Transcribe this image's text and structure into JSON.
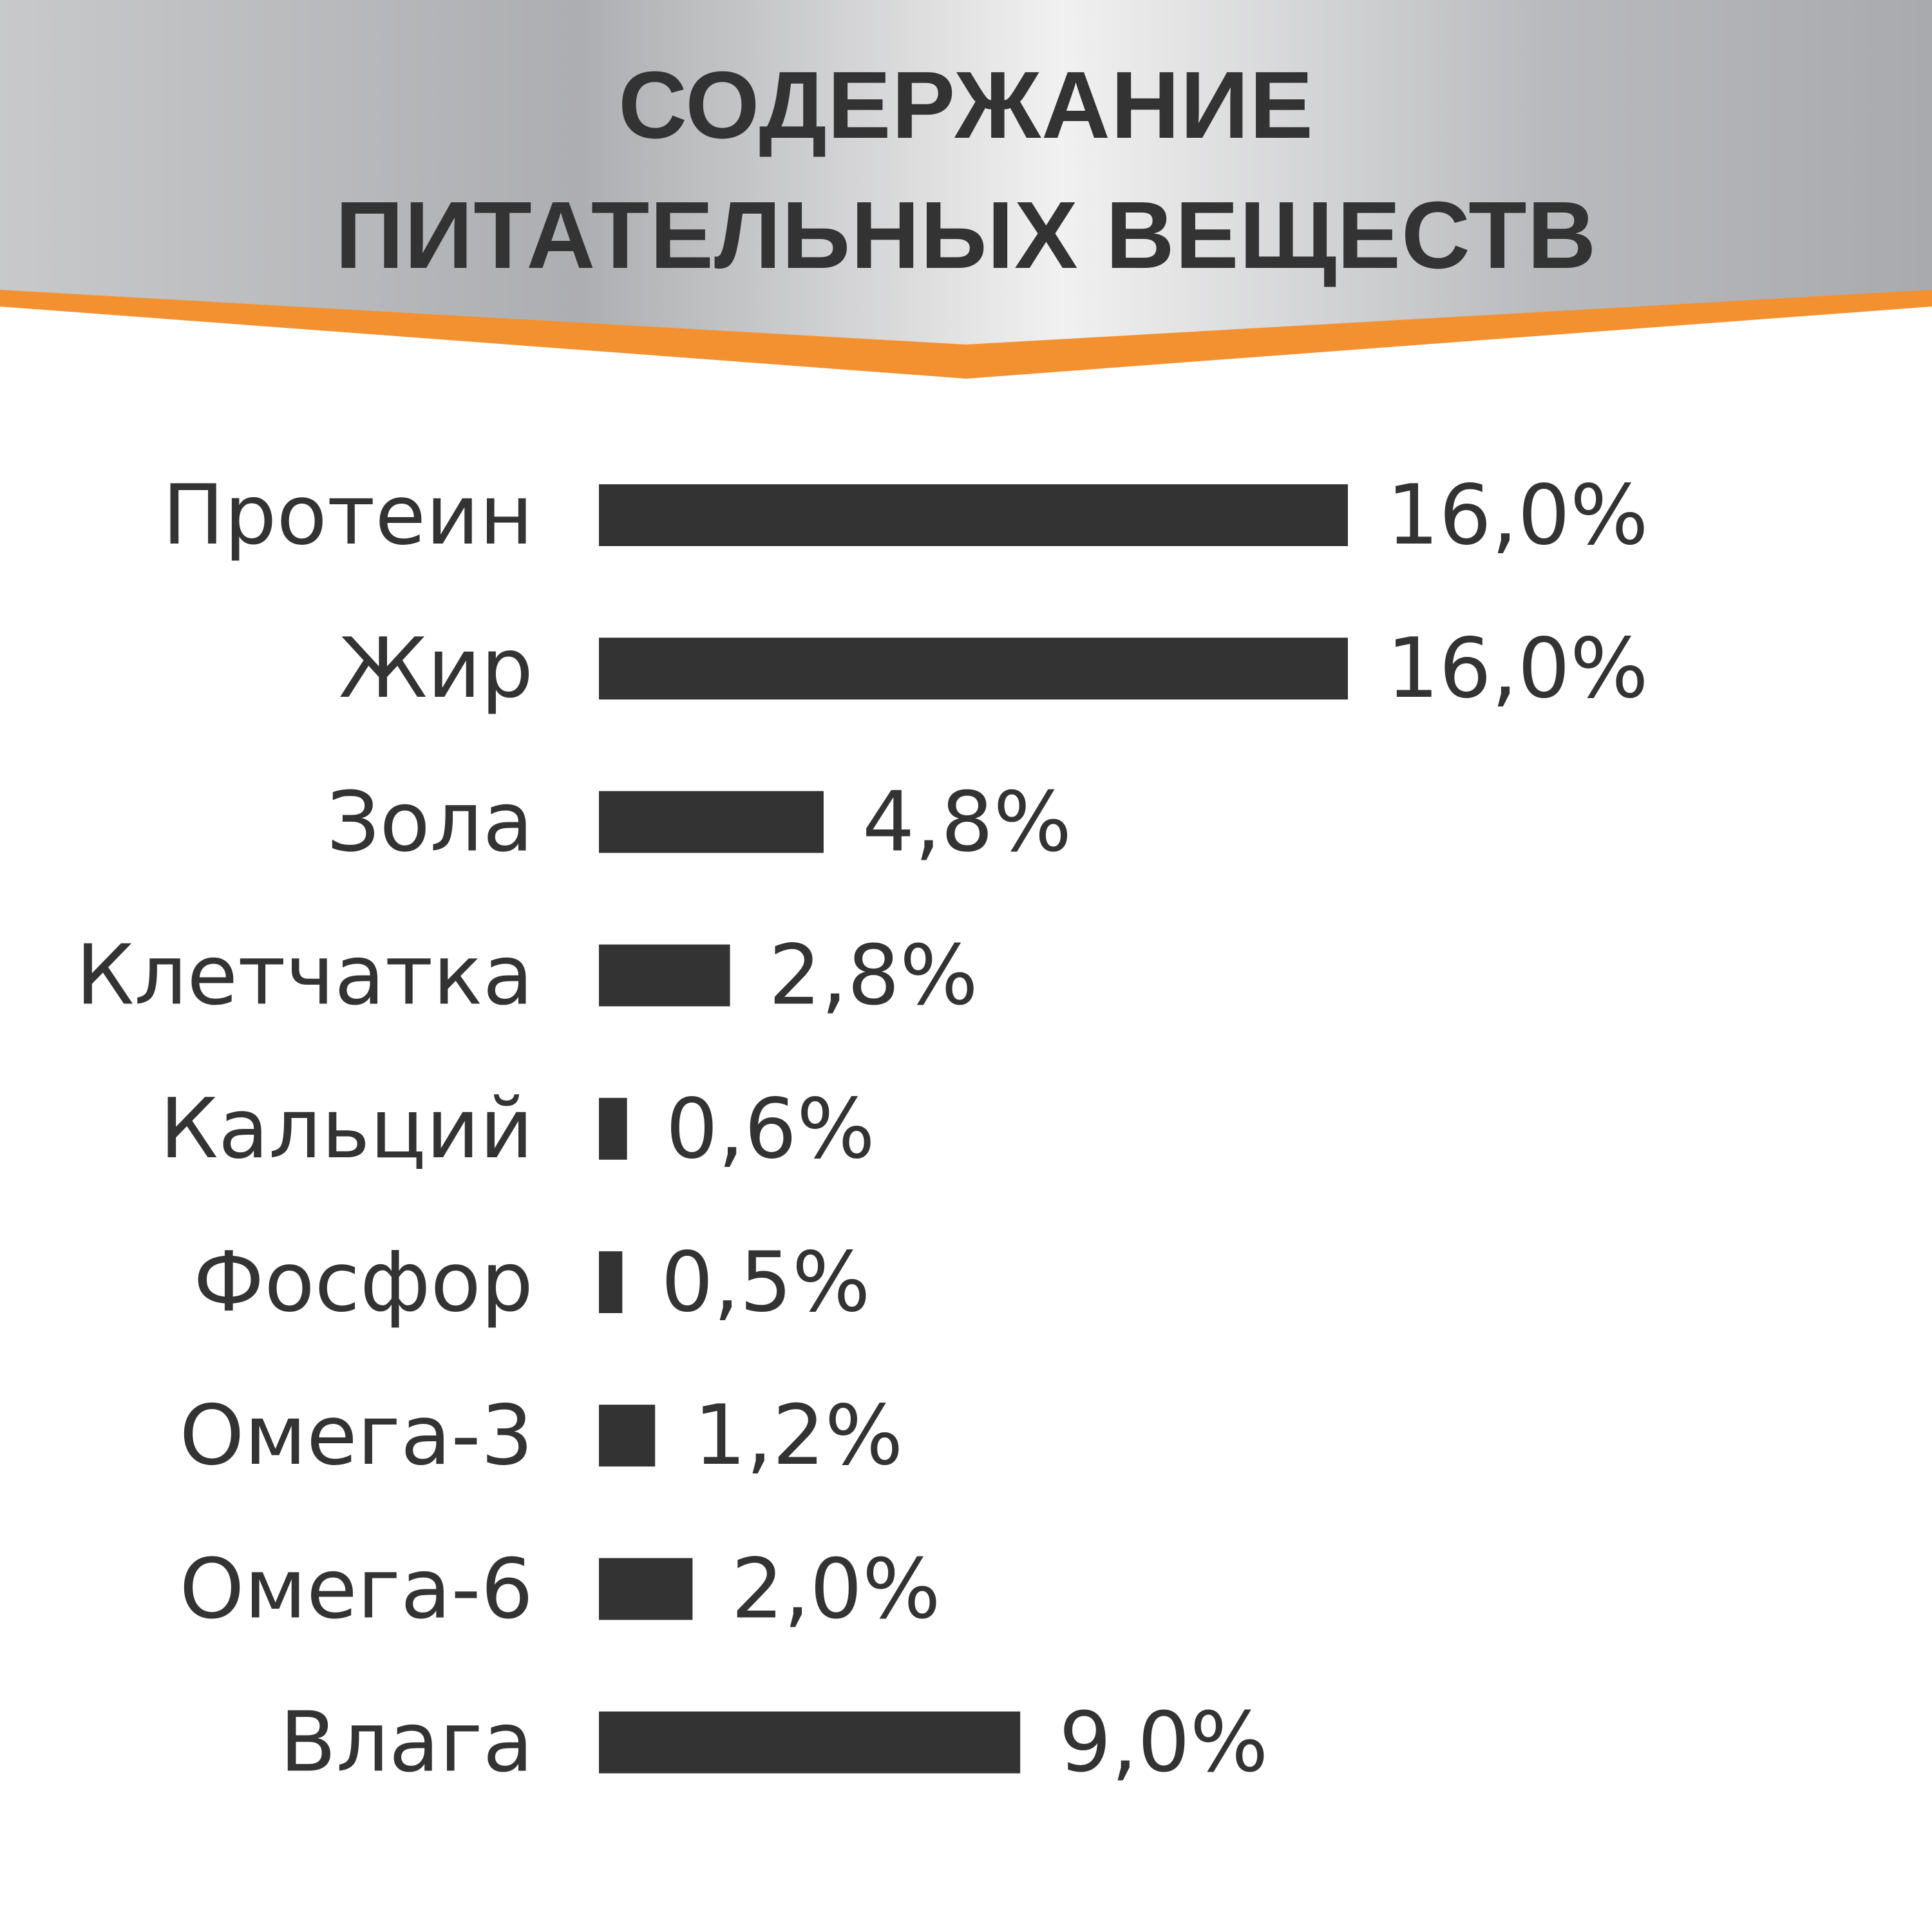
{
  "chart_data": {
    "type": "bar",
    "orientation": "horizontal",
    "title_lines": [
      "СОДЕРЖАНИЕ",
      "ПИТАТЕЛЬНЫХ ВЕЩЕСТВ"
    ],
    "categories": [
      "Протеин",
      "Жир",
      "Зола",
      "Клетчатка",
      "Кальций",
      "Фосфор",
      "Омега-3",
      "Омега-6",
      "Влага"
    ],
    "values": [
      16.0,
      16.0,
      4.8,
      2.8,
      0.6,
      0.5,
      1.2,
      2.0,
      9.0
    ],
    "value_labels": [
      "16,0%",
      "16,0%",
      "4,8%",
      "2,8%",
      "0,6%",
      "0,5%",
      "1,2%",
      "2,0%",
      "9,0%"
    ],
    "xlim": [
      0,
      16
    ],
    "grid": false,
    "bar_color": "#333333",
    "accent_color": "#f39130"
  }
}
